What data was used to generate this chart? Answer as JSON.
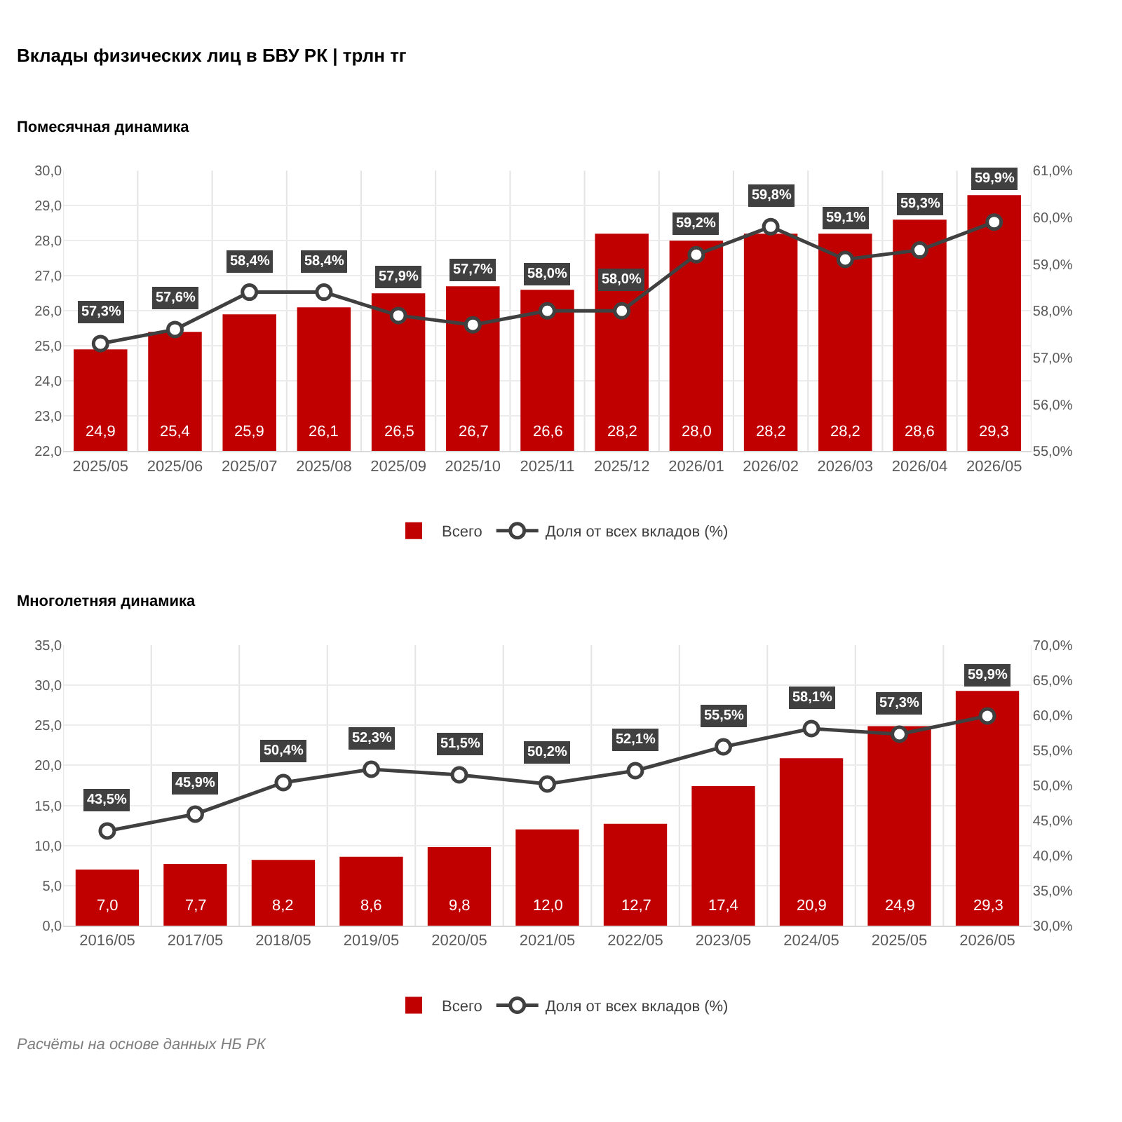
{
  "chart_data": [
    {
      "type": "bar",
      "title": "Вклады физических лиц в БВУ РК | трлн тг",
      "subtitle": "Помесячная динамика",
      "categories": [
        "2025/05",
        "2025/06",
        "2025/07",
        "2025/08",
        "2025/09",
        "2025/10",
        "2025/11",
        "2025/12",
        "2026/01",
        "2026/02",
        "2026/03",
        "2026/04",
        "2026/05"
      ],
      "series": [
        {
          "name": "Всего",
          "color": "#c00000",
          "values": [
            24.9,
            25.4,
            25.9,
            26.1,
            26.5,
            26.7,
            26.6,
            28.2,
            28.0,
            28.2,
            28.2,
            28.6,
            29.3
          ],
          "value_labels": [
            "24,9",
            "25,4",
            "25,9",
            "26,1",
            "26,5",
            "26,7",
            "26,6",
            "28,2",
            "28,0",
            "28,2",
            "28,2",
            "28,6",
            "29,3"
          ]
        },
        {
          "name": "Доля от всех вкладов (%)",
          "type": "line",
          "axis": "y2",
          "color": "#404040",
          "marker": "circle",
          "values": [
            57.3,
            57.6,
            58.4,
            58.4,
            57.9,
            57.7,
            58.0,
            58.0,
            59.2,
            59.8,
            59.1,
            59.3,
            59.9
          ],
          "value_labels": [
            "57,3%",
            "57,6%",
            "58,4%",
            "58,4%",
            "57,9%",
            "57,7%",
            "58,0%",
            "58,0%",
            "59,2%",
            "59,8%",
            "59,1%",
            "59,3%",
            "59,9%"
          ]
        }
      ],
      "ylim": [
        22,
        30
      ],
      "yticks": [
        {
          "value": 22,
          "label": "22,0"
        },
        {
          "value": 23,
          "label": "23,0"
        },
        {
          "value": 24,
          "label": "24,0"
        },
        {
          "value": 25,
          "label": "25,0"
        },
        {
          "value": 26,
          "label": "26,0"
        },
        {
          "value": 27,
          "label": "27,0"
        },
        {
          "value": 28,
          "label": "28,0"
        },
        {
          "value": 29,
          "label": "29,0"
        },
        {
          "value": 30,
          "label": "30,0"
        }
      ],
      "y2lim": [
        55,
        61
      ],
      "y2ticks": [
        {
          "value": 55,
          "label": "55,0%"
        },
        {
          "value": 56,
          "label": "56,0%"
        },
        {
          "value": 57,
          "label": "57,0%"
        },
        {
          "value": 58,
          "label": "58,0%"
        },
        {
          "value": 59,
          "label": "59,0%"
        },
        {
          "value": 60,
          "label": "60,0%"
        },
        {
          "value": 61,
          "label": "61,0%"
        }
      ],
      "grid": true,
      "legend": "bottom"
    },
    {
      "type": "bar",
      "title": "Многолетняя динамика",
      "annotations": [
        "Расчёты на основе данных НБ РК"
      ],
      "categories": [
        "2016/05",
        "2017/05",
        "2018/05",
        "2019/05",
        "2020/05",
        "2021/05",
        "2022/05",
        "2023/05",
        "2024/05",
        "2025/05",
        "2026/05"
      ],
      "series": [
        {
          "name": "Всего",
          "color": "#c00000",
          "values": [
            7.0,
            7.7,
            8.2,
            8.6,
            9.8,
            12.0,
            12.7,
            17.4,
            20.9,
            24.9,
            29.3
          ],
          "value_labels": [
            "7,0",
            "7,7",
            "8,2",
            "8,6",
            "9,8",
            "12,0",
            "12,7",
            "17,4",
            "20,9",
            "24,9",
            "29,3"
          ]
        },
        {
          "name": "Доля от всех вкладов (%)",
          "type": "line",
          "axis": "y2",
          "color": "#404040",
          "marker": "circle",
          "values": [
            43.5,
            45.9,
            50.4,
            52.3,
            51.5,
            50.2,
            52.1,
            55.5,
            58.1,
            57.3,
            59.9
          ],
          "value_labels": [
            "43,5%",
            "45,9%",
            "50,4%",
            "52,3%",
            "51,5%",
            "50,2%",
            "52,1%",
            "55,5%",
            "58,1%",
            "57,3%",
            "59,9%"
          ]
        }
      ],
      "ylim": [
        0,
        35
      ],
      "yticks": [
        {
          "value": 0,
          "label": "0,0"
        },
        {
          "value": 5,
          "label": "5,0"
        },
        {
          "value": 10,
          "label": "10,0"
        },
        {
          "value": 15,
          "label": "15,0"
        },
        {
          "value": 20,
          "label": "20,0"
        },
        {
          "value": 25,
          "label": "25,0"
        },
        {
          "value": 30,
          "label": "30,0"
        },
        {
          "value": 35,
          "label": "35,0"
        }
      ],
      "y2lim": [
        30,
        70
      ],
      "y2ticks": [
        {
          "value": 30,
          "label": "30,0%"
        },
        {
          "value": 35,
          "label": "35,0%"
        },
        {
          "value": 40,
          "label": "40,0%"
        },
        {
          "value": 45,
          "label": "45,0%"
        },
        {
          "value": 50,
          "label": "50,0%"
        },
        {
          "value": 55,
          "label": "55,0%"
        },
        {
          "value": 60,
          "label": "60,0%"
        },
        {
          "value": 65,
          "label": "65,0%"
        },
        {
          "value": 70,
          "label": "70,0%"
        }
      ],
      "grid": true,
      "legend": "bottom"
    }
  ]
}
